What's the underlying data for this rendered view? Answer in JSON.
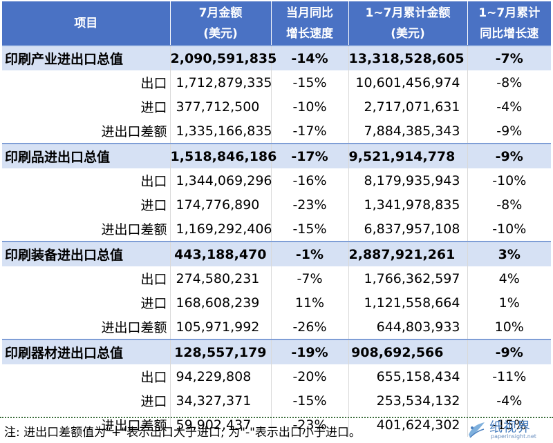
{
  "headers": [
    {
      "line1": "项目",
      "line2": ""
    },
    {
      "line1": "7月金额",
      "line2": "(美元)"
    },
    {
      "line1": "当月同比",
      "line2": "增长速度"
    },
    {
      "line1": "1~7月累计金额",
      "line2": "(美元)"
    },
    {
      "line1": "1~7月累计",
      "line2": "同比增长速"
    }
  ],
  "rows": [
    {
      "type": "total",
      "item": "印刷产业进出口总值",
      "amount": "2,090,591,835",
      "mom": "-14%",
      "cumulative": "13,318,528,605",
      "cum_growth": "-7%"
    },
    {
      "type": "sub",
      "item": "出口",
      "amount": "1,712,879,335",
      "mom": "-15%",
      "cumulative": "10,601,456,974",
      "cum_growth": "-8%"
    },
    {
      "type": "sub",
      "item": "进口",
      "amount": "377,712,500",
      "mom": "-10%",
      "cumulative": "2,717,071,631",
      "cum_growth": "-4%"
    },
    {
      "type": "sub",
      "item": "进出口差额",
      "amount": "1,335,166,835",
      "mom": "-17%",
      "cumulative": "7,884,385,343",
      "cum_growth": "-9%"
    },
    {
      "type": "total",
      "item": "印刷品进出口总值",
      "amount": "1,518,846,186",
      "mom": "-17%",
      "cumulative": "9,521,914,778",
      "cum_growth": "-9%"
    },
    {
      "type": "sub",
      "item": "出口",
      "amount": "1,344,069,296",
      "mom": "-16%",
      "cumulative": "8,179,935,943",
      "cum_growth": "-10%"
    },
    {
      "type": "sub",
      "item": "进口",
      "amount": "174,776,890",
      "mom": "-23%",
      "cumulative": "1,341,978,835",
      "cum_growth": "-8%"
    },
    {
      "type": "sub",
      "item": "进出口差额",
      "amount": "1,169,292,406",
      "mom": "-15%",
      "cumulative": "6,837,957,108",
      "cum_growth": "-10%"
    },
    {
      "type": "total",
      "item": "印刷装备进出口总值",
      "amount": "443,188,470",
      "mom": "-1%",
      "cumulative": "2,887,921,261",
      "cum_growth": "3%"
    },
    {
      "type": "sub",
      "item": "出口",
      "amount": "274,580,231",
      "mom": "-7%",
      "cumulative": "1,766,362,597",
      "cum_growth": "4%"
    },
    {
      "type": "sub",
      "item": "进口",
      "amount": "168,608,239",
      "mom": "11%",
      "cumulative": "1,121,558,664",
      "cum_growth": "1%"
    },
    {
      "type": "sub",
      "item": "进出口差额",
      "amount": "105,971,992",
      "mom": "-26%",
      "cumulative": "644,803,933",
      "cum_growth": "10%"
    },
    {
      "type": "total",
      "item": "印刷器材进出口总值",
      "amount": "128,557,179",
      "mom": "-19%",
      "cumulative": "908,692,566",
      "cum_growth": "-9%"
    },
    {
      "type": "sub",
      "item": "出口",
      "amount": "94,229,808",
      "mom": "-20%",
      "cumulative": "655,158,434",
      "cum_growth": "-11%"
    },
    {
      "type": "sub",
      "item": "进口",
      "amount": "34,327,371",
      "mom": "-15%",
      "cumulative": "253,534,132",
      "cum_growth": "-4%"
    },
    {
      "type": "sub",
      "item": "进出口差额",
      "amount": "59,902,437",
      "mom": "-23%",
      "cumulative": "401,624,302",
      "cum_growth": "-15%"
    }
  ],
  "footnote": "注: 进出口差额值为\"+\"表示出口大于进口; 为\"-\"表示出口小于进口。",
  "watermark": {
    "title": "纸视界",
    "url": "paperinsight.net",
    "accent": "#4a7fbf"
  },
  "colors": {
    "header_bg": "#4a72c4",
    "total_row_bg": "#d6e1f4",
    "divider": "#7f9ed6"
  }
}
